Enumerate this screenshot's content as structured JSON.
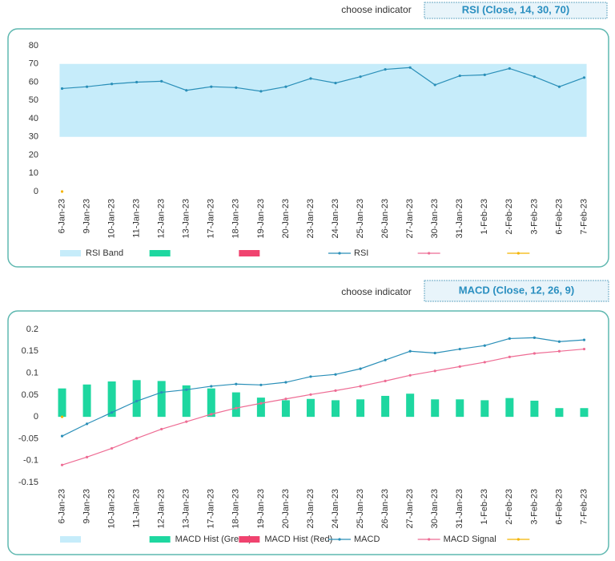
{
  "controls": [
    {
      "label": "choose indicator",
      "value": "RSI (Close, 14, 30, 70)"
    },
    {
      "label": "choose indicator",
      "value": "MACD (Close, 12, 26, 9)"
    }
  ],
  "chart_data": [
    {
      "type": "combo",
      "categories": [
        "6-Jan-23",
        "9-Jan-23",
        "10-Jan-23",
        "11-Jan-23",
        "12-Jan-23",
        "13-Jan-23",
        "17-Jan-23",
        "18-Jan-23",
        "19-Jan-23",
        "20-Jan-23",
        "23-Jan-23",
        "24-Jan-23",
        "25-Jan-23",
        "26-Jan-23",
        "27-Jan-23",
        "30-Jan-23",
        "31-Jan-23",
        "1-Feb-23",
        "2-Feb-23",
        "3-Feb-23",
        "6-Feb-23",
        "7-Feb-23"
      ],
      "ylim": [
        0,
        80
      ],
      "yticks": [
        0,
        10,
        20,
        30,
        40,
        50,
        60,
        70,
        80
      ],
      "series": [
        {
          "name": "RSI Band",
          "color": "#c6ecfa",
          "style": "band",
          "range": [
            30,
            70
          ]
        },
        {
          "color": "#1ed7a0",
          "style": "bar"
        },
        {
          "color": "#f0436f",
          "style": "bar"
        },
        {
          "name": "RSI",
          "color": "#2a8fb8",
          "style": "line",
          "values": [
            56.5,
            57.5,
            59,
            60,
            60.5,
            55.5,
            57.5,
            57,
            55,
            57.5,
            62,
            59.5,
            63,
            67,
            68,
            58.5,
            63.5,
            64,
            67.5,
            63,
            57.5,
            62.5
          ]
        },
        {
          "color": "#ee6c94",
          "style": "line"
        },
        {
          "color": "#f4b400",
          "style": "line",
          "values": [
            0,
            null,
            null,
            null,
            null,
            null,
            null,
            null,
            null,
            null,
            null,
            null,
            null,
            null,
            null,
            null,
            null,
            null,
            null,
            null,
            null,
            null
          ]
        }
      ]
    },
    {
      "type": "combo",
      "categories": [
        "6-Jan-23",
        "9-Jan-23",
        "10-Jan-23",
        "11-Jan-23",
        "12-Jan-23",
        "13-Jan-23",
        "17-Jan-23",
        "18-Jan-23",
        "19-Jan-23",
        "20-Jan-23",
        "23-Jan-23",
        "24-Jan-23",
        "25-Jan-23",
        "26-Jan-23",
        "27-Jan-23",
        "30-Jan-23",
        "31-Jan-23",
        "1-Feb-23",
        "2-Feb-23",
        "3-Feb-23",
        "6-Feb-23",
        "7-Feb-23"
      ],
      "ylim": [
        -0.15,
        0.2
      ],
      "yticks": [
        -0.15,
        -0.1,
        -0.05,
        0,
        0.05,
        0.1,
        0.15,
        0.2
      ],
      "series": [
        {
          "color": "#c6ecfa",
          "style": "band"
        },
        {
          "name": "MACD Hist (Green)",
          "color": "#1ed7a0",
          "style": "bar",
          "values": [
            0.065,
            0.074,
            0.081,
            0.084,
            0.082,
            0.072,
            0.065,
            0.056,
            0.044,
            0.038,
            0.041,
            0.038,
            0.04,
            0.048,
            0.053,
            0.04,
            0.04,
            0.038,
            0.043,
            0.037,
            0.02,
            0.02
          ]
        },
        {
          "name": "MACD Hist (Red)",
          "color": "#f0436f",
          "style": "bar"
        },
        {
          "name": "MACD",
          "color": "#2a8fb8",
          "style": "line",
          "values": [
            -0.044,
            -0.016,
            0.01,
            0.036,
            0.056,
            0.062,
            0.07,
            0.075,
            0.073,
            0.079,
            0.092,
            0.097,
            0.11,
            0.13,
            0.15,
            0.146,
            0.155,
            0.163,
            0.179,
            0.181,
            0.172,
            0.176
          ]
        },
        {
          "name": "MACD Signal",
          "color": "#ee6c94",
          "style": "line",
          "values": [
            -0.11,
            -0.092,
            -0.072,
            -0.049,
            -0.028,
            -0.011,
            0.006,
            0.02,
            0.031,
            0.041,
            0.051,
            0.06,
            0.07,
            0.082,
            0.095,
            0.105,
            0.115,
            0.125,
            0.137,
            0.145,
            0.15,
            0.155
          ]
        },
        {
          "color": "#f4b400",
          "style": "line",
          "values": [
            0,
            null,
            null,
            null,
            null,
            null,
            null,
            null,
            null,
            null,
            null,
            null,
            null,
            null,
            null,
            null,
            null,
            null,
            null,
            null,
            null,
            null
          ]
        }
      ]
    }
  ]
}
